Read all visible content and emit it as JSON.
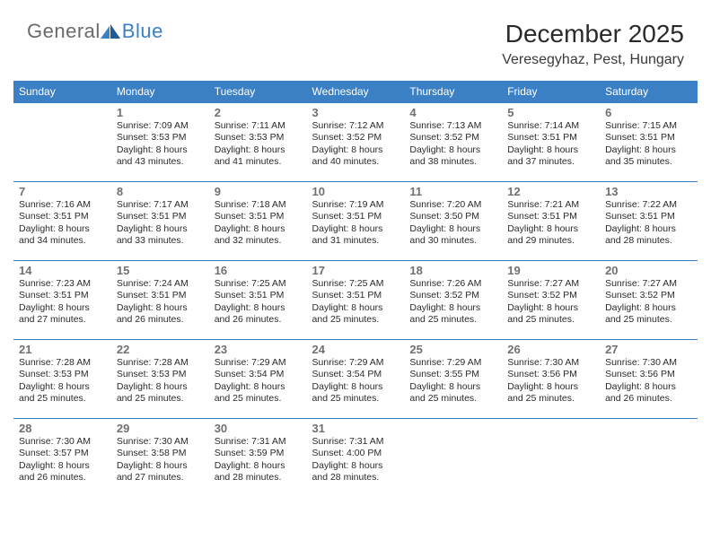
{
  "brand": {
    "name_part1": "General",
    "name_part2": "Blue",
    "logo_color": "#3b7fc4",
    "text_color": "#6a6a6a"
  },
  "header": {
    "title": "December 2025",
    "location": "Veresegyhaz, Pest, Hungary"
  },
  "colors": {
    "header_bg": "#3b7fc4",
    "header_text": "#ffffff",
    "border": "#3b7fc4",
    "daynum": "#707070",
    "body_text": "#2a2a2a",
    "background": "#ffffff"
  },
  "typography": {
    "title_fontsize": 28,
    "location_fontsize": 16,
    "dayheader_fontsize": 12,
    "daynum_fontsize": 13,
    "daytext_fontsize": 10.5
  },
  "layout": {
    "columns": 7,
    "rows": 5,
    "first_day_column": 1
  },
  "day_headers": [
    "Sunday",
    "Monday",
    "Tuesday",
    "Wednesday",
    "Thursday",
    "Friday",
    "Saturday"
  ],
  "days": [
    {
      "n": "1",
      "sr": "7:09 AM",
      "ss": "3:53 PM",
      "dl": "8 hours and 43 minutes."
    },
    {
      "n": "2",
      "sr": "7:11 AM",
      "ss": "3:53 PM",
      "dl": "8 hours and 41 minutes."
    },
    {
      "n": "3",
      "sr": "7:12 AM",
      "ss": "3:52 PM",
      "dl": "8 hours and 40 minutes."
    },
    {
      "n": "4",
      "sr": "7:13 AM",
      "ss": "3:52 PM",
      "dl": "8 hours and 38 minutes."
    },
    {
      "n": "5",
      "sr": "7:14 AM",
      "ss": "3:51 PM",
      "dl": "8 hours and 37 minutes."
    },
    {
      "n": "6",
      "sr": "7:15 AM",
      "ss": "3:51 PM",
      "dl": "8 hours and 35 minutes."
    },
    {
      "n": "7",
      "sr": "7:16 AM",
      "ss": "3:51 PM",
      "dl": "8 hours and 34 minutes."
    },
    {
      "n": "8",
      "sr": "7:17 AM",
      "ss": "3:51 PM",
      "dl": "8 hours and 33 minutes."
    },
    {
      "n": "9",
      "sr": "7:18 AM",
      "ss": "3:51 PM",
      "dl": "8 hours and 32 minutes."
    },
    {
      "n": "10",
      "sr": "7:19 AM",
      "ss": "3:51 PM",
      "dl": "8 hours and 31 minutes."
    },
    {
      "n": "11",
      "sr": "7:20 AM",
      "ss": "3:50 PM",
      "dl": "8 hours and 30 minutes."
    },
    {
      "n": "12",
      "sr": "7:21 AM",
      "ss": "3:51 PM",
      "dl": "8 hours and 29 minutes."
    },
    {
      "n": "13",
      "sr": "7:22 AM",
      "ss": "3:51 PM",
      "dl": "8 hours and 28 minutes."
    },
    {
      "n": "14",
      "sr": "7:23 AM",
      "ss": "3:51 PM",
      "dl": "8 hours and 27 minutes."
    },
    {
      "n": "15",
      "sr": "7:24 AM",
      "ss": "3:51 PM",
      "dl": "8 hours and 26 minutes."
    },
    {
      "n": "16",
      "sr": "7:25 AM",
      "ss": "3:51 PM",
      "dl": "8 hours and 26 minutes."
    },
    {
      "n": "17",
      "sr": "7:25 AM",
      "ss": "3:51 PM",
      "dl": "8 hours and 25 minutes."
    },
    {
      "n": "18",
      "sr": "7:26 AM",
      "ss": "3:52 PM",
      "dl": "8 hours and 25 minutes."
    },
    {
      "n": "19",
      "sr": "7:27 AM",
      "ss": "3:52 PM",
      "dl": "8 hours and 25 minutes."
    },
    {
      "n": "20",
      "sr": "7:27 AM",
      "ss": "3:52 PM",
      "dl": "8 hours and 25 minutes."
    },
    {
      "n": "21",
      "sr": "7:28 AM",
      "ss": "3:53 PM",
      "dl": "8 hours and 25 minutes."
    },
    {
      "n": "22",
      "sr": "7:28 AM",
      "ss": "3:53 PM",
      "dl": "8 hours and 25 minutes."
    },
    {
      "n": "23",
      "sr": "7:29 AM",
      "ss": "3:54 PM",
      "dl": "8 hours and 25 minutes."
    },
    {
      "n": "24",
      "sr": "7:29 AM",
      "ss": "3:54 PM",
      "dl": "8 hours and 25 minutes."
    },
    {
      "n": "25",
      "sr": "7:29 AM",
      "ss": "3:55 PM",
      "dl": "8 hours and 25 minutes."
    },
    {
      "n": "26",
      "sr": "7:30 AM",
      "ss": "3:56 PM",
      "dl": "8 hours and 25 minutes."
    },
    {
      "n": "27",
      "sr": "7:30 AM",
      "ss": "3:56 PM",
      "dl": "8 hours and 26 minutes."
    },
    {
      "n": "28",
      "sr": "7:30 AM",
      "ss": "3:57 PM",
      "dl": "8 hours and 26 minutes."
    },
    {
      "n": "29",
      "sr": "7:30 AM",
      "ss": "3:58 PM",
      "dl": "8 hours and 27 minutes."
    },
    {
      "n": "30",
      "sr": "7:31 AM",
      "ss": "3:59 PM",
      "dl": "8 hours and 28 minutes."
    },
    {
      "n": "31",
      "sr": "7:31 AM",
      "ss": "4:00 PM",
      "dl": "8 hours and 28 minutes."
    }
  ],
  "labels": {
    "sunrise": "Sunrise:",
    "sunset": "Sunset:",
    "daylight": "Daylight:"
  }
}
